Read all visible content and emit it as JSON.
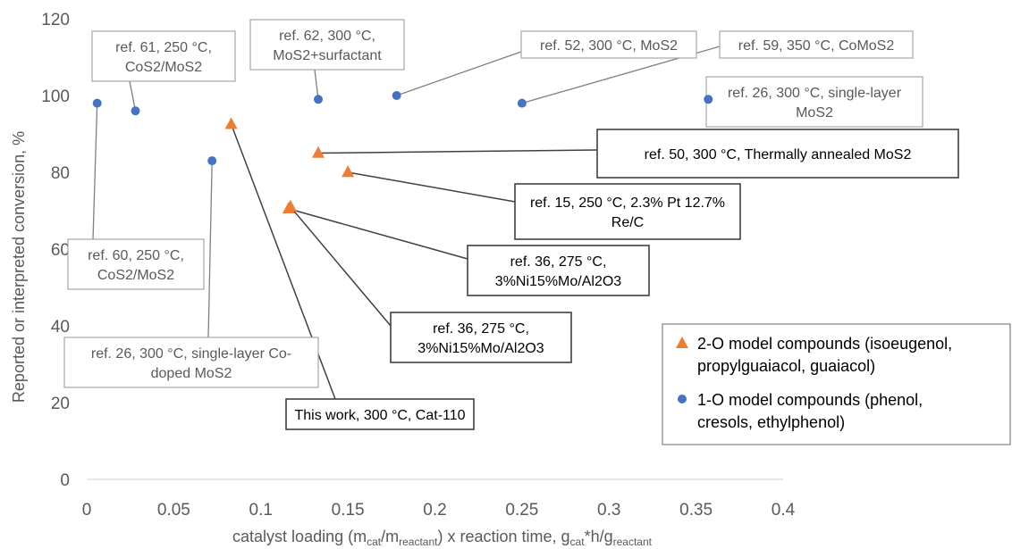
{
  "chart_data": {
    "type": "scatter",
    "xlabel": {
      "parts": [
        "catalyst loading (m",
        "cat",
        "/m",
        "reactant",
        ") x reaction time, g",
        "cat",
        "*h/g",
        "reactant"
      ],
      "subscripts": [
        false,
        true,
        false,
        true,
        false,
        true,
        false,
        true
      ]
    },
    "ylabel": "Reported or interpreted conversion, %",
    "xlim": [
      0,
      0.4
    ],
    "ylim": [
      0,
      120
    ],
    "x_ticks": [
      0,
      0.05,
      0.1,
      0.15,
      0.2,
      0.25,
      0.3,
      0.35,
      0.4
    ],
    "x_tick_labels": [
      "0",
      "0.05",
      "0.1",
      "0.15",
      "0.2",
      "0.25",
      "0.3",
      "0.35",
      "0.4"
    ],
    "y_ticks": [
      0,
      20,
      40,
      60,
      80,
      100,
      120
    ],
    "y_tick_labels": [
      "0",
      "20",
      "40",
      "60",
      "80",
      "100",
      "120"
    ],
    "grid": false,
    "legend_position": "bottom-right",
    "series": [
      {
        "name": "2-O model compounds (isoeugenol, propylguaiacol, guaiacol)",
        "legend_lines": [
          "2-O model compounds (isoeugenol,",
          "propylguaiacol, guaiacol)"
        ],
        "marker": "triangle",
        "color": "#ed7d31",
        "points": [
          {
            "x": 0.083,
            "y": 92.5,
            "label": [
              "This work, 300 °C, Cat-110"
            ],
            "style": "dark"
          },
          {
            "x": 0.116,
            "y": 70.5,
            "label": [
              "ref. 36, 275 °C,",
              "3%Ni15%Mo/Al2O3"
            ],
            "style": "dark"
          },
          {
            "x": 0.117,
            "y": 71,
            "label": [
              "ref. 36, 275 °C,",
              "3%Ni15%Mo/Al2O3"
            ],
            "style": "dark"
          },
          {
            "x": 0.133,
            "y": 85,
            "label": [
              "ref. 50, 300 °C, Thermally annealed MoS2"
            ],
            "style": "dark"
          },
          {
            "x": 0.15,
            "y": 80,
            "label": [
              "ref. 15, 250 °C, 2.3% Pt 12.7%",
              "Re/C"
            ],
            "style": "dark"
          }
        ]
      },
      {
        "name": "1-O model compounds (phenol, cresols, ethylphenol)",
        "legend_lines": [
          "1-O model compounds (phenol,",
          "cresols, ethylphenol)"
        ],
        "marker": "circle",
        "color": "#4472c4",
        "points": [
          {
            "x": 0.006,
            "y": 98,
            "label": [
              "ref. 60, 250 °C,",
              "CoS2/MoS2"
            ],
            "style": "light"
          },
          {
            "x": 0.028,
            "y": 96,
            "label": [
              "ref. 61, 250 °C,",
              "CoS2/MoS2"
            ],
            "style": "light"
          },
          {
            "x": 0.072,
            "y": 83,
            "label": [
              "ref. 26, 300 °C, single-layer Co-",
              "doped MoS2"
            ],
            "style": "light"
          },
          {
            "x": 0.133,
            "y": 99,
            "label": [
              "ref. 62, 300 °C,",
              "MoS2+surfactant"
            ],
            "style": "light"
          },
          {
            "x": 0.178,
            "y": 100,
            "label": [
              "ref. 52, 300 °C, MoS2"
            ],
            "style": "light"
          },
          {
            "x": 0.25,
            "y": 98,
            "label": [
              "ref. 59, 350 °C, CoMoS2"
            ],
            "style": "light"
          },
          {
            "x": 0.357,
            "y": 99,
            "label": [
              "ref. 26, 300 °C, single-layer",
              "MoS2"
            ],
            "style": "light"
          }
        ]
      }
    ]
  }
}
